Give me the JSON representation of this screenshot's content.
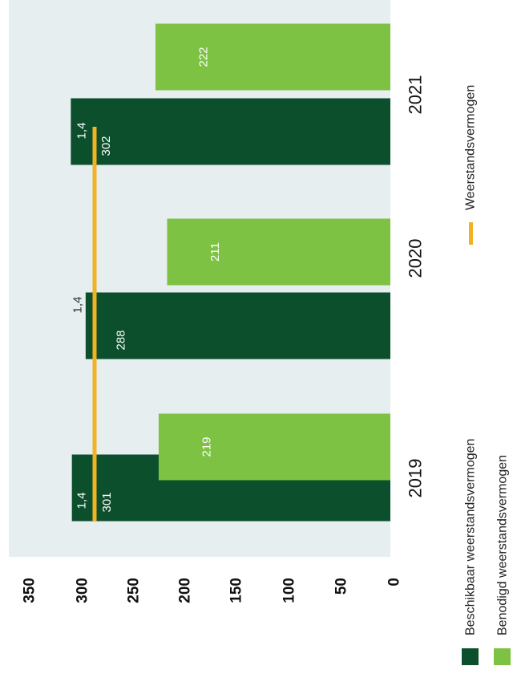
{
  "chart_data": {
    "type": "bar",
    "categories": [
      "2019",
      "2020",
      "2021"
    ],
    "series": [
      {
        "name": "Beschikbaar weerstandsvermogen",
        "values": [
          301,
          288,
          302
        ],
        "color": "#0b4f2c"
      },
      {
        "name": "Benodigd weerstandsvermogen",
        "values": [
          219,
          211,
          222
        ],
        "color": "#7dc242"
      }
    ],
    "line_series": {
      "name": "Weerstandsvermogen",
      "values": [
        1.4,
        1.4,
        1.4
      ],
      "labels": [
        "1,4",
        "1,4",
        "1,4"
      ],
      "color": "#f0b323"
    },
    "y_ticks": [
      "0",
      "50",
      "100",
      "150",
      "200",
      "250",
      "300",
      "350"
    ],
    "ylim": [
      0,
      350
    ],
    "orientation": "rotated-90-clockwise",
    "plot_background": "#e6eef0",
    "legend_position": "bottom"
  }
}
